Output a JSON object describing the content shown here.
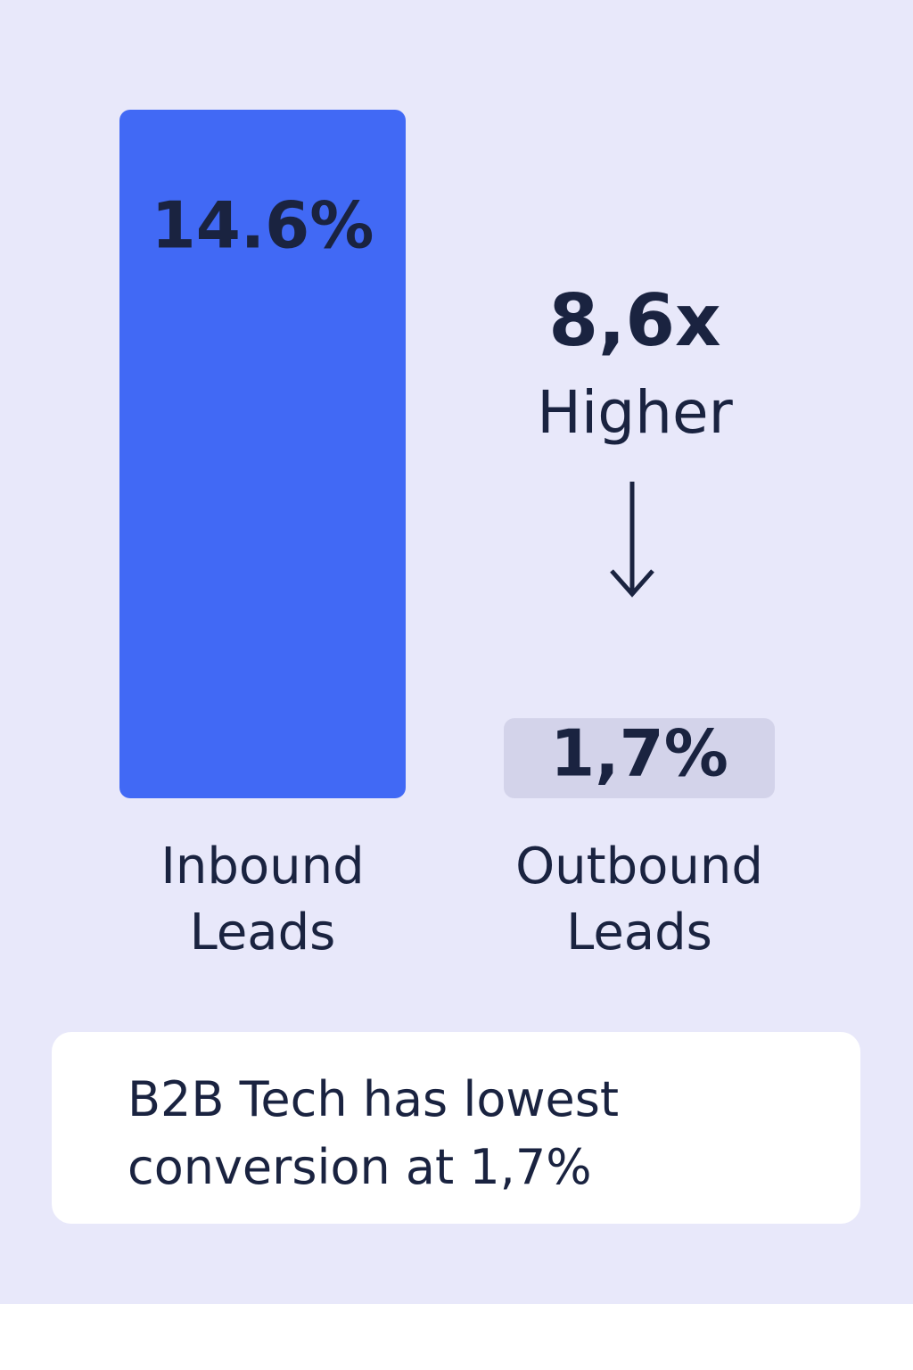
{
  "chart_data": {
    "type": "bar",
    "categories": [
      "Inbound Leads",
      "Outbound Leads"
    ],
    "values": [
      14.6,
      1.7
    ],
    "value_labels": [
      "14.6%",
      "1,7%"
    ],
    "colors": [
      "#4169f5",
      "#d3d3ea"
    ],
    "annotation": [
      "8,6x",
      "Higher"
    ],
    "note": "B2B Tech has lowest conversion at 1,7%"
  }
}
